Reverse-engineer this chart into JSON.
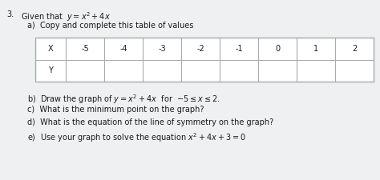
{
  "title_num": "3.",
  "title_text": "Given that  $y = x^2 + 4x$",
  "part_a": "a)  Copy and complete this table of values",
  "table_x_label": "X",
  "table_y_label": "Y",
  "x_values": [
    "-5",
    "-4",
    "-3",
    "-2",
    "-1",
    "0",
    "1",
    "2"
  ],
  "y_values": [
    "",
    "",
    "",
    "",
    "",
    "",
    "",
    ""
  ],
  "part_b": "b)  Draw the graph of $y = x^2 + 4x$  for  $-5 \\leq x \\leq 2$.",
  "part_c": "c)  What is the minimum point on the graph?",
  "part_d": "d)  What is the equation of the line of symmetry on the graph?",
  "part_e": "e)  Use your graph to solve the equation $x^2 + 4x + 3 = 0$",
  "bg_color": "#eef0f2",
  "table_bg": "#ffffff",
  "table_border_color": "#aaaaaa",
  "text_color": "#1a1a1a",
  "font_size": 7.0,
  "table_font_size": 7.0
}
